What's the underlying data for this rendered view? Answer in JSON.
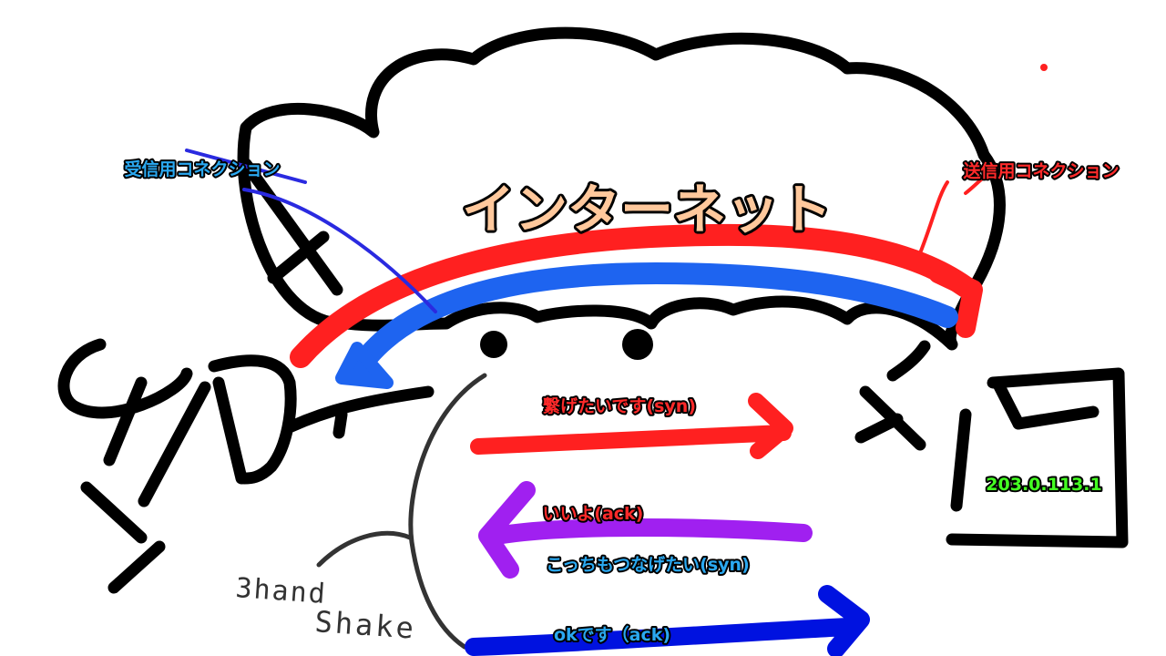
{
  "title": "インターネット",
  "labels": {
    "receive": "受信用コネクション",
    "send": "送信用コネクション",
    "syn1": "繋げたいです(syn)",
    "ack1": "いいよ(ack)",
    "syn2": "こっちもつなげたい(syn)",
    "ack2": "okです（ack)",
    "ip": "203.0.113.1",
    "handshake_line1": "3hand",
    "handshake_line2": "Shake"
  },
  "colors": {
    "ink": "#000000",
    "red": "#ff2020",
    "blue": "#1e64f0",
    "purple": "#a020f0",
    "navy": "#0012e0",
    "thin_blue": "#2a2ae0",
    "title_fill": "#ffc89c",
    "receive_text": "#2aa8f0",
    "send_text": "#ff2a2a",
    "ip_text": "#44ff22",
    "grey": "#333333"
  }
}
